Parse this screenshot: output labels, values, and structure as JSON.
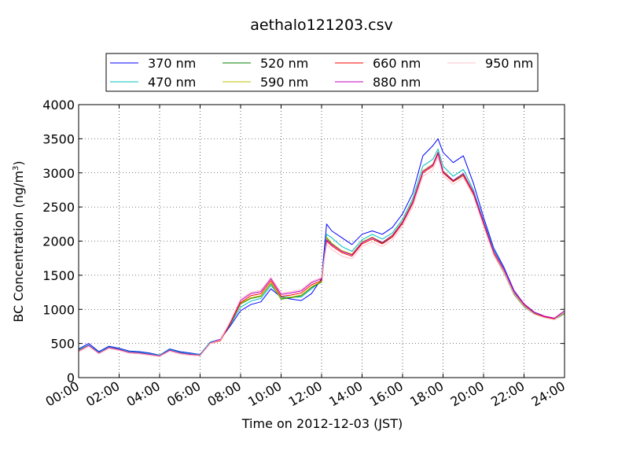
{
  "chart_data": {
    "type": "line",
    "title": "aethalo121203.csv",
    "xlabel": "Time on 2012-12-03 (JST)",
    "ylabel": "BC Concentration (ng/m",
    "ylabel_sup": "3",
    "ylabel_close": ")",
    "xlim": [
      0,
      24
    ],
    "ylim": [
      0,
      4000
    ],
    "xticks": [
      0,
      2,
      4,
      6,
      8,
      10,
      12,
      14,
      16,
      18,
      20,
      22,
      24
    ],
    "xtick_labels": [
      "00:00",
      "02:00",
      "04:00",
      "06:00",
      "08:00",
      "10:00",
      "12:00",
      "14:00",
      "16:00",
      "18:00",
      "20:00",
      "22:00",
      "24:00"
    ],
    "yticks": [
      0,
      500,
      1000,
      1500,
      2000,
      2500,
      3000,
      3500,
      4000
    ],
    "ytick_labels": [
      "0",
      "500",
      "1000",
      "1500",
      "2000",
      "2500",
      "3000",
      "3500",
      "4000"
    ],
    "grid": true,
    "legend_position": "top",
    "x_hours": [
      0,
      0.5,
      1,
      1.5,
      2,
      2.5,
      3,
      3.5,
      4,
      4.5,
      5,
      5.5,
      6,
      6.5,
      7,
      7.5,
      8,
      8.5,
      9,
      9.5,
      10,
      10.5,
      11,
      11.5,
      12,
      12.25,
      12.5,
      13,
      13.5,
      14,
      14.5,
      15,
      15.5,
      16,
      16.5,
      17,
      17.5,
      17.75,
      18,
      18.5,
      19,
      19.5,
      20,
      20.5,
      21,
      21.5,
      22,
      22.5,
      23,
      23.5,
      24
    ],
    "series": [
      {
        "name": "370 nm",
        "color": "#0000ff",
        "values": [
          420,
          500,
          380,
          460,
          430,
          390,
          380,
          360,
          330,
          420,
          380,
          360,
          340,
          520,
          560,
          760,
          980,
          1070,
          1110,
          1300,
          1180,
          1150,
          1130,
          1230,
          1450,
          2250,
          2150,
          2050,
          1950,
          2100,
          2150,
          2100,
          2200,
          2400,
          2700,
          3250,
          3400,
          3500,
          3300,
          3150,
          3250,
          2850,
          2350,
          1900,
          1620,
          1280,
          1080,
          960,
          900,
          870,
          960
        ]
      },
      {
        "name": "470 nm",
        "color": "#00bfbf",
        "values": [
          410,
          480,
          370,
          450,
          420,
          380,
          370,
          350,
          330,
          410,
          370,
          350,
          340,
          520,
          560,
          780,
          1030,
          1120,
          1160,
          1350,
          1180,
          1180,
          1180,
          1300,
          1420,
          2100,
          2050,
          1920,
          1850,
          2020,
          2100,
          2030,
          2120,
          2320,
          2620,
          3100,
          3200,
          3350,
          3100,
          2950,
          3050,
          2750,
          2300,
          1880,
          1600,
          1260,
          1070,
          950,
          890,
          860,
          950
        ]
      },
      {
        "name": "520 nm",
        "color": "#008000",
        "values": [
          400,
          470,
          360,
          440,
          410,
          370,
          360,
          340,
          320,
          400,
          360,
          340,
          330,
          510,
          550,
          790,
          1080,
          1160,
          1190,
          1380,
          1150,
          1170,
          1200,
          1320,
          1400,
          2050,
          1960,
          1850,
          1800,
          1980,
          2050,
          1970,
          2080,
          2280,
          2580,
          3020,
          3120,
          3300,
          3020,
          2880,
          2980,
          2700,
          2250,
          1800,
          1540,
          1220,
          1040,
          930,
          880,
          850,
          940
        ]
      },
      {
        "name": "590 nm",
        "color": "#bfbf00",
        "values": [
          400,
          470,
          360,
          440,
          410,
          370,
          360,
          340,
          320,
          400,
          360,
          340,
          330,
          510,
          550,
          800,
          1090,
          1170,
          1200,
          1390,
          1160,
          1180,
          1210,
          1330,
          1410,
          2060,
          1970,
          1860,
          1810,
          1990,
          2060,
          1980,
          2090,
          2290,
          2590,
          3030,
          3130,
          3310,
          3030,
          2890,
          2990,
          2710,
          2260,
          1810,
          1550,
          1230,
          1050,
          940,
          890,
          860,
          950
        ]
      },
      {
        "name": "660 nm",
        "color": "#ff0000",
        "values": [
          380,
          460,
          350,
          430,
          400,
          360,
          350,
          330,
          310,
          390,
          350,
          330,
          320,
          500,
          540,
          800,
          1100,
          1200,
          1230,
          1420,
          1190,
          1210,
          1240,
          1360,
          1420,
          2000,
          1930,
          1830,
          1780,
          1960,
          2030,
          1960,
          2060,
          2260,
          2550,
          3000,
          3100,
          3280,
          3000,
          2870,
          2960,
          2690,
          2240,
          1820,
          1560,
          1240,
          1060,
          940,
          890,
          860,
          960
        ]
      },
      {
        "name": "880 nm",
        "color": "#bf00bf",
        "values": [
          390,
          470,
          360,
          440,
          410,
          370,
          360,
          340,
          320,
          400,
          360,
          340,
          330,
          510,
          560,
          820,
          1130,
          1230,
          1260,
          1450,
          1220,
          1240,
          1270,
          1390,
          1450,
          2020,
          1950,
          1850,
          1800,
          1980,
          2050,
          1980,
          2080,
          2280,
          2570,
          3020,
          3120,
          3300,
          3020,
          2890,
          2990,
          2720,
          2280,
          1850,
          1590,
          1270,
          1080,
          960,
          900,
          870,
          980
        ]
      },
      {
        "name": "950 nm",
        "color": "#ffc0cb",
        "values": [
          380,
          460,
          350,
          430,
          400,
          360,
          350,
          330,
          310,
          390,
          350,
          330,
          320,
          500,
          550,
          830,
          1150,
          1250,
          1280,
          1470,
          1240,
          1260,
          1290,
          1410,
          1470,
          1950,
          1880,
          1780,
          1740,
          1920,
          1990,
          1920,
          2020,
          2220,
          2500,
          2950,
          3050,
          3230,
          2960,
          2830,
          2930,
          2660,
          2220,
          1800,
          1550,
          1230,
          1050,
          930,
          880,
          850,
          960
        ]
      }
    ]
  }
}
